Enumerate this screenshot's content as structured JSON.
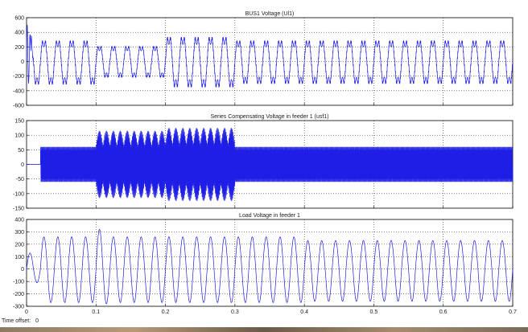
{
  "footer": {
    "time_offset_label": "Time offset:",
    "time_offset_value": "0"
  },
  "colors": {
    "trace": "#1e1ee6",
    "axes": "#000000",
    "grid": "#000000",
    "background": "#ffffff"
  },
  "chart_data": [
    {
      "type": "line",
      "title": "BUS1 Voltage (Ul1)",
      "xlabel": "",
      "ylabel": "",
      "xlim": [
        0,
        0.7
      ],
      "ylim": [
        -600,
        600
      ],
      "yticks": [
        600,
        400,
        200,
        0,
        -200,
        -400,
        -600
      ],
      "grid": true,
      "series": [
        {
          "waveform": "distorted sinusoid (50 Hz) with startup transient and harmonic notching",
          "frequency_hz": 50,
          "segments": [
            {
              "t_start": 0.0,
              "t_end": 0.1,
              "peak": 300,
              "dip": -330
            },
            {
              "t_start": 0.1,
              "t_end": 0.2,
              "peak": 220,
              "dip": -230
            },
            {
              "t_start": 0.2,
              "t_end": 0.3,
              "peak": 350,
              "dip": -370
            },
            {
              "t_start": 0.3,
              "t_end": 0.7,
              "peak": 300,
              "dip": -320
            }
          ],
          "startup_transient": {
            "max": 540,
            "min": -520,
            "t_end": 0.01
          }
        }
      ]
    },
    {
      "type": "line",
      "title": "Series Compensating Voltage in feeder 1 (usf1)",
      "xlabel": "",
      "ylabel": "",
      "xlim": [
        0,
        0.7
      ],
      "ylim": [
        -150,
        150
      ],
      "yticks": [
        150,
        100,
        50,
        0,
        -50,
        -100,
        -150
      ],
      "grid": true,
      "series": [
        {
          "waveform": "high-frequency switching ripple with modulated envelope",
          "segments": [
            {
              "t_start": 0.0,
              "t_end": 0.02,
              "amplitude": 0
            },
            {
              "t_start": 0.02,
              "t_end": 0.1,
              "amplitude": 60
            },
            {
              "t_start": 0.1,
              "t_end": 0.2,
              "amplitude": 115
            },
            {
              "t_start": 0.2,
              "t_end": 0.3,
              "amplitude": 125
            },
            {
              "t_start": 0.3,
              "t_end": 0.7,
              "amplitude": 60
            }
          ]
        }
      ]
    },
    {
      "type": "line",
      "title": "Load Voltage in feeder 1",
      "xlabel": "",
      "ylabel": "",
      "xlim": [
        0,
        0.7
      ],
      "ylim": [
        -300,
        400
      ],
      "yticks": [
        400,
        300,
        200,
        100,
        0,
        -100,
        -200,
        -300
      ],
      "grid": true,
      "series": [
        {
          "waveform": "sinusoid with initial transient",
          "frequency_hz": 50,
          "segments": [
            {
              "t_start": 0.0,
              "t_end": 0.02,
              "peak": 130,
              "dip": -110
            },
            {
              "t_start": 0.02,
              "t_end": 0.1,
              "peak": 260,
              "dip": -270
            },
            {
              "t_start": 0.1,
              "t_end": 0.12,
              "peak": 320,
              "dip": -280
            },
            {
              "t_start": 0.12,
              "t_end": 0.4,
              "peak": 260,
              "dip": -270
            },
            {
              "t_start": 0.4,
              "t_end": 0.7,
              "peak": 230,
              "dip": -260
            }
          ]
        }
      ]
    }
  ],
  "x_tick_labels": [
    "0",
    "0.1",
    "0.2",
    "0.3",
    "0.4",
    "0.5",
    "0.6",
    "0.7"
  ],
  "x_ticks": [
    0,
    0.1,
    0.2,
    0.3,
    0.4,
    0.5,
    0.6,
    0.7
  ]
}
